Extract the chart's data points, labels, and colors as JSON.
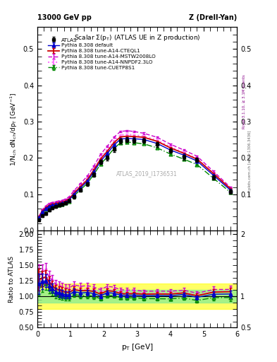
{
  "title_left": "13000 GeV pp",
  "title_right": "Z (Drell-Yan)",
  "plot_title": "Scalar Σ(p_{T}) (ATLAS UE in Z production)",
  "xlabel": "p_{T} [GeV]",
  "ylabel": "1/N_{ch} dN_{ch}/dp_{T} [GeV⁻¹]",
  "ylabel_ratio": "Ratio to ATLAS",
  "watermark": "ATLAS_2019_I1736531",
  "rivet_label": "Rivet 3.1.10, ≥ 3.1M events",
  "mcplots_label": "mcplots.cern.ch [arXiv:1306.3436]",
  "pt_data": [
    0.05,
    0.15,
    0.25,
    0.35,
    0.45,
    0.55,
    0.65,
    0.75,
    0.85,
    0.95,
    1.1,
    1.3,
    1.5,
    1.7,
    1.9,
    2.1,
    2.3,
    2.5,
    2.7,
    2.9,
    3.2,
    3.6,
    4.0,
    4.4,
    4.8,
    5.3,
    5.8
  ],
  "atlas_y": [
    0.03,
    0.042,
    0.048,
    0.057,
    0.062,
    0.067,
    0.07,
    0.073,
    0.077,
    0.082,
    0.093,
    0.112,
    0.128,
    0.155,
    0.19,
    0.2,
    0.224,
    0.247,
    0.25,
    0.248,
    0.248,
    0.237,
    0.22,
    0.202,
    0.195,
    0.147,
    0.108
  ],
  "atlas_yerr": [
    0.004,
    0.004,
    0.004,
    0.004,
    0.004,
    0.004,
    0.004,
    0.004,
    0.004,
    0.004,
    0.004,
    0.005,
    0.005,
    0.006,
    0.006,
    0.006,
    0.007,
    0.007,
    0.007,
    0.007,
    0.006,
    0.006,
    0.006,
    0.006,
    0.006,
    0.006,
    0.006
  ],
  "pythia_default_y": [
    0.036,
    0.052,
    0.06,
    0.067,
    0.07,
    0.072,
    0.074,
    0.076,
    0.079,
    0.084,
    0.1,
    0.118,
    0.136,
    0.162,
    0.191,
    0.212,
    0.235,
    0.252,
    0.254,
    0.253,
    0.251,
    0.24,
    0.222,
    0.208,
    0.192,
    0.152,
    0.112
  ],
  "pythia_default_yerr": [
    0.001,
    0.001,
    0.001,
    0.001,
    0.001,
    0.001,
    0.001,
    0.001,
    0.001,
    0.001,
    0.001,
    0.001,
    0.002,
    0.002,
    0.002,
    0.002,
    0.002,
    0.002,
    0.002,
    0.002,
    0.002,
    0.002,
    0.002,
    0.002,
    0.002,
    0.002,
    0.002
  ],
  "cteq_y": [
    0.038,
    0.054,
    0.063,
    0.07,
    0.073,
    0.075,
    0.077,
    0.079,
    0.082,
    0.087,
    0.103,
    0.122,
    0.14,
    0.167,
    0.197,
    0.218,
    0.242,
    0.258,
    0.26,
    0.259,
    0.257,
    0.246,
    0.228,
    0.213,
    0.197,
    0.157,
    0.116
  ],
  "cteq_yerr": [
    0.001,
    0.001,
    0.001,
    0.001,
    0.001,
    0.001,
    0.001,
    0.001,
    0.001,
    0.001,
    0.001,
    0.001,
    0.002,
    0.002,
    0.002,
    0.002,
    0.002,
    0.002,
    0.002,
    0.002,
    0.002,
    0.002,
    0.002,
    0.002,
    0.002,
    0.002,
    0.002
  ],
  "mstw_y": [
    0.04,
    0.058,
    0.068,
    0.075,
    0.078,
    0.08,
    0.082,
    0.084,
    0.087,
    0.093,
    0.11,
    0.13,
    0.15,
    0.178,
    0.21,
    0.232,
    0.257,
    0.273,
    0.275,
    0.273,
    0.268,
    0.257,
    0.238,
    0.222,
    0.205,
    0.163,
    0.12
  ],
  "mstw_yerr": [
    0.001,
    0.001,
    0.001,
    0.001,
    0.001,
    0.001,
    0.001,
    0.001,
    0.001,
    0.001,
    0.001,
    0.001,
    0.002,
    0.002,
    0.002,
    0.002,
    0.002,
    0.002,
    0.002,
    0.002,
    0.002,
    0.002,
    0.002,
    0.002,
    0.002,
    0.002,
    0.002
  ],
  "nnpdf_y": [
    0.038,
    0.055,
    0.064,
    0.071,
    0.074,
    0.076,
    0.078,
    0.08,
    0.083,
    0.088,
    0.105,
    0.124,
    0.143,
    0.17,
    0.201,
    0.222,
    0.247,
    0.263,
    0.265,
    0.263,
    0.26,
    0.249,
    0.231,
    0.215,
    0.199,
    0.158,
    0.117
  ],
  "nnpdf_yerr": [
    0.001,
    0.001,
    0.001,
    0.001,
    0.001,
    0.001,
    0.001,
    0.001,
    0.001,
    0.001,
    0.001,
    0.001,
    0.002,
    0.002,
    0.002,
    0.002,
    0.002,
    0.002,
    0.002,
    0.002,
    0.002,
    0.002,
    0.002,
    0.002,
    0.002,
    0.002,
    0.002
  ],
  "cuetp_y": [
    0.035,
    0.05,
    0.058,
    0.064,
    0.067,
    0.069,
    0.071,
    0.073,
    0.076,
    0.081,
    0.096,
    0.113,
    0.13,
    0.155,
    0.183,
    0.203,
    0.226,
    0.242,
    0.244,
    0.242,
    0.239,
    0.228,
    0.211,
    0.197,
    0.182,
    0.144,
    0.106
  ],
  "cuetp_yerr": [
    0.001,
    0.001,
    0.001,
    0.001,
    0.001,
    0.001,
    0.001,
    0.001,
    0.001,
    0.001,
    0.001,
    0.001,
    0.002,
    0.002,
    0.002,
    0.002,
    0.002,
    0.002,
    0.002,
    0.002,
    0.002,
    0.002,
    0.002,
    0.002,
    0.002,
    0.002,
    0.002
  ],
  "color_atlas": "#000000",
  "color_default": "#0000cc",
  "color_cteq": "#cc0000",
  "color_mstw": "#cc00cc",
  "color_nnpdf": "#ff77ff",
  "color_cuetp": "#008800",
  "ylim_main": [
    0.0,
    0.56
  ],
  "ylim_ratio": [
    0.5,
    2.05
  ],
  "xlim": [
    0.0,
    6.0
  ],
  "band_green_lo": 0.9,
  "band_green_hi": 1.1,
  "band_yellow_lo": 0.8,
  "band_yellow_hi": 1.2
}
